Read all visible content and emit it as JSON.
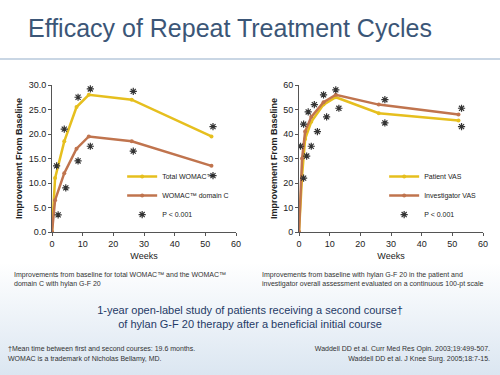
{
  "slide": {
    "title": "Efficacy of Repeat Treatment Cycles",
    "captions": [
      "Improvements from baseline for total WOMAC™ and the WOMAC™ domain C with hylan G-F 20",
      "Improvements from baseline with hylan G-F 20 in the patient and investigator overall assessment evaluated on a continuous 100-pt scale"
    ],
    "summary": "1-year open-label study of patients receiving a second course† of hylan G-F 20 therapy after a beneficial initial course",
    "footnotes": [
      "†Mean time between first and second courses: 19.6 months.",
      "WOMAC is a trademark of Nicholas Bellamy, MD."
    ],
    "references": [
      "Waddell DD et al. Curr Med Res Opin. 2003;19:499-507.",
      "Waddell DD et al. J Knee Surg. 2005;18:7-15."
    ]
  },
  "chart_data": [
    {
      "type": "line",
      "x_label": "Weeks",
      "y_label": "Improvement From Baseline",
      "x": [
        0,
        1,
        4,
        8,
        12,
        26,
        52
      ],
      "series": [
        {
          "name": "Total WOMAC™",
          "color": "#e6bf1e",
          "marker": "circle",
          "values": [
            0,
            11,
            18.5,
            25.5,
            28,
            27,
            19.5
          ]
        },
        {
          "name": "WOMAC™ domain C",
          "color": "#c0744e",
          "marker": "circle",
          "values": [
            0,
            6.5,
            12,
            17,
            19.5,
            18.5,
            13.5
          ]
        },
        {
          "name": "P < 0.001",
          "type": "scatter",
          "color": "#333333",
          "marker": "asterisk",
          "x": [
            1.5,
            4,
            8.5,
            12.5,
            26.5,
            52.5,
            2,
            4.5,
            8.5,
            12.5,
            26.5,
            52.5
          ],
          "values": [
            13.5,
            21,
            27.5,
            29.2,
            28.7,
            21.5,
            3.5,
            9,
            14.5,
            17.5,
            16.5,
            11.5
          ]
        }
      ],
      "xlim": [
        0,
        60
      ],
      "xticks": [
        0,
        10,
        20,
        30,
        40,
        50,
        60
      ],
      "ylim": [
        0,
        30
      ],
      "yticks": [
        {
          "value": 0,
          "label": "0.0"
        },
        {
          "value": 5,
          "label": "5.0"
        },
        {
          "value": 10,
          "label": "10.0"
        },
        {
          "value": 15,
          "label": "15.0"
        },
        {
          "value": 20,
          "label": "20.0"
        },
        {
          "value": 25,
          "label": "25.0"
        },
        {
          "value": 30,
          "label": "30.0"
        }
      ],
      "grid": false,
      "legend": "lower right"
    },
    {
      "type": "line",
      "x_label": "Weeks",
      "y_label": "Improvement From Baseline",
      "x": [
        0,
        1,
        2,
        4,
        8,
        12,
        26,
        52
      ],
      "series": [
        {
          "name": "Patient VAS",
          "color": "#e6bf1e",
          "marker": "circle",
          "values": [
            0,
            23,
            38,
            45,
            52,
            55,
            48.5,
            45.5
          ]
        },
        {
          "name": "Investigator VAS",
          "color": "#c0744e",
          "marker": "circle",
          "values": [
            0,
            30,
            41,
            47,
            53,
            56,
            52,
            48
          ]
        },
        {
          "name": "P < 0.001",
          "type": "scatter",
          "color": "#333333",
          "marker": "asterisk",
          "x": [
            0.5,
            1.5,
            3,
            5,
            8,
            12,
            28,
            53,
            1.5,
            2.5,
            4,
            6,
            9,
            13,
            28,
            53
          ],
          "values": [
            35,
            44,
            49,
            52,
            56,
            58,
            54,
            50.5,
            22,
            31,
            35,
            41,
            47,
            50.5,
            44.5,
            43
          ]
        }
      ],
      "xlim": [
        0,
        60
      ],
      "xticks": [
        0,
        10,
        20,
        30,
        40,
        50,
        60
      ],
      "ylim": [
        0,
        60
      ],
      "yticks": [
        0,
        10,
        20,
        30,
        40,
        50,
        60
      ],
      "grid": false,
      "legend": "lower right"
    }
  ]
}
